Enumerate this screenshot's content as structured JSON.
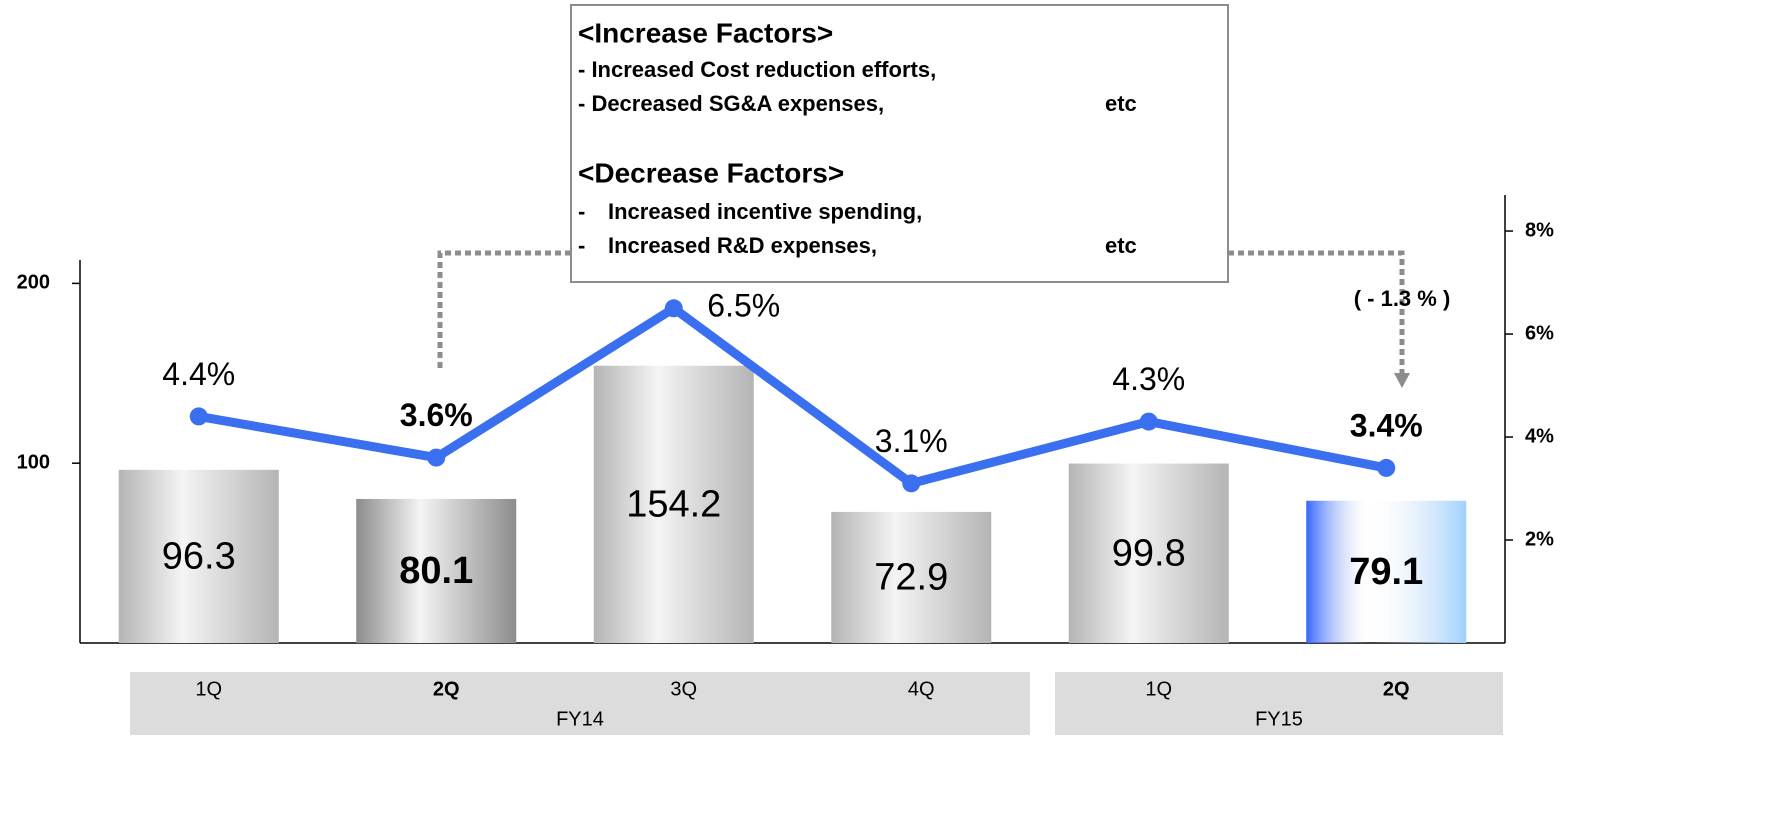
{
  "chart_data": {
    "type": "bar_line",
    "categories": [
      "1Q",
      "2Q",
      "3Q",
      "4Q",
      "1Q",
      "2Q"
    ],
    "groups": [
      {
        "label": "FY14",
        "span": 4
      },
      {
        "label": "FY15",
        "span": 2
      }
    ],
    "bold": [
      false,
      true,
      false,
      false,
      false,
      true
    ],
    "series": [
      {
        "type": "bar",
        "values": [
          96.3,
          80.1,
          154.2,
          72.9,
          99.8,
          79.1
        ],
        "colors": [
          "#b4b4b4",
          "#8c8c8c",
          "#b4b4b4",
          "#b4b4b4",
          "#b4b4b4",
          "#3366ff"
        ]
      },
      {
        "type": "line",
        "axis": "y2",
        "color": "#3a6ff0",
        "values": [
          4.4,
          3.6,
          6.5,
          3.1,
          4.3,
          3.4
        ],
        "value_labels": [
          "4.4%",
          "3.6%",
          "6.5%",
          "3.1%",
          "4.3%",
          "3.4%"
        ]
      }
    ],
    "ylim": [
      0,
      213
    ],
    "yticks": [
      100,
      200
    ],
    "y2lim": [
      0,
      8.7
    ],
    "y2ticks": [
      {
        "value": 2,
        "label": "2%"
      },
      {
        "value": 4,
        "label": "4%"
      },
      {
        "value": 6,
        "label": "6%"
      },
      {
        "value": 8,
        "label": "8%"
      }
    ],
    "annotation_box": {
      "increase_title": "<Increase Factors>",
      "increase_items": [
        [
          "- Increased Cost reduction efforts,"
        ],
        [
          "- Decreased SG&A expenses,",
          "etc"
        ]
      ],
      "decrease_title": "<Decrease Factors>",
      "decrease_items": [
        [
          "-",
          "Increased incentive spending,"
        ],
        [
          "-",
          "Increased R&D expenses,",
          "etc"
        ]
      ]
    },
    "change_label": "(  - 1.3 %  )"
  }
}
